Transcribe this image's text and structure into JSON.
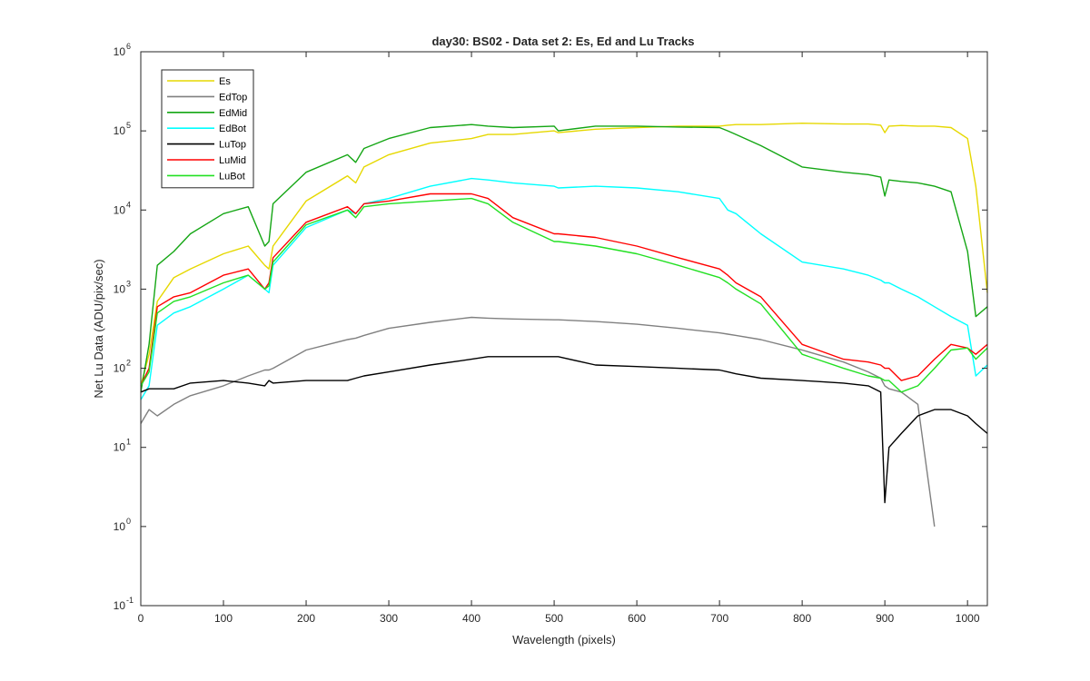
{
  "chart_data": {
    "type": "line",
    "title": "day30: BS02 - Data set 2: Es, Ed and Lu Tracks",
    "xlabel": "Wavelength (pixels)",
    "ylabel": "Net Lu Data (ADU/pix/sec)",
    "xlim": [
      0,
      1024
    ],
    "ylim": [
      0.1,
      1000000
    ],
    "yscale": "log",
    "grid": false,
    "legend_position": "top-left",
    "x_ticks": [
      "0",
      "100",
      "200",
      "300",
      "400",
      "500",
      "600",
      "700",
      "800",
      "900",
      "1000"
    ],
    "y_ticks": [
      {
        "base": "10",
        "exp": "-1"
      },
      {
        "base": "10",
        "exp": "0"
      },
      {
        "base": "10",
        "exp": "1"
      },
      {
        "base": "10",
        "exp": "2"
      },
      {
        "base": "10",
        "exp": "3"
      },
      {
        "base": "10",
        "exp": "4"
      },
      {
        "base": "10",
        "exp": "5"
      },
      {
        "base": "10",
        "exp": "6"
      }
    ],
    "x": [
      0,
      10,
      20,
      40,
      60,
      100,
      130,
      150,
      155,
      160,
      200,
      250,
      260,
      270,
      300,
      350,
      400,
      420,
      450,
      500,
      505,
      550,
      600,
      650,
      700,
      710,
      720,
      750,
      800,
      850,
      880,
      895,
      900,
      905,
      920,
      940,
      960,
      980,
      1000,
      1010,
      1024
    ],
    "series": [
      {
        "name": "Es",
        "color": "#e6d800",
        "values": [
          60,
          150,
          700,
          1400,
          1800,
          2800,
          3500,
          2000,
          1800,
          3500,
          13000,
          27000,
          22000,
          35000,
          50000,
          70000,
          80000,
          90000,
          90000,
          100000,
          95000,
          105000,
          110000,
          115000,
          115000,
          118000,
          120000,
          120000,
          125000,
          122000,
          122000,
          118000,
          95000,
          115000,
          117000,
          115000,
          115000,
          110000,
          80000,
          20000,
          900
        ]
      },
      {
        "name": "EdTop",
        "color": "#808080",
        "values": [
          20,
          30,
          25,
          35,
          45,
          60,
          80,
          95,
          95,
          100,
          170,
          230,
          240,
          260,
          320,
          380,
          440,
          430,
          420,
          410,
          410,
          390,
          360,
          320,
          280,
          270,
          260,
          230,
          170,
          120,
          90,
          75,
          60,
          55,
          50,
          35,
          1,
          null,
          null,
          null,
          null
        ]
      },
      {
        "name": "EdMid",
        "color": "#14a614",
        "values": [
          50,
          200,
          2000,
          3000,
          5000,
          9000,
          11000,
          3500,
          4000,
          12000,
          30000,
          50000,
          40000,
          60000,
          80000,
          110000,
          120000,
          115000,
          110000,
          115000,
          100000,
          115000,
          115000,
          112000,
          110000,
          100000,
          90000,
          65000,
          35000,
          30000,
          28000,
          26000,
          15000,
          24000,
          23000,
          22000,
          20000,
          17000,
          3000,
          450,
          600
        ]
      },
      {
        "name": "EdBot",
        "color": "#00ffff",
        "values": [
          40,
          60,
          350,
          500,
          600,
          1000,
          1500,
          1000,
          900,
          2000,
          6000,
          10000,
          9000,
          12000,
          14000,
          20000,
          25000,
          24000,
          22000,
          20000,
          19000,
          20000,
          19000,
          17000,
          14000,
          10000,
          9000,
          5000,
          2200,
          1800,
          1500,
          1300,
          1200,
          1200,
          1000,
          800,
          600,
          450,
          350,
          80,
          110
        ]
      },
      {
        "name": "LuTop",
        "color": "#000000",
        "values": [
          50,
          55,
          55,
          55,
          65,
          70,
          65,
          60,
          70,
          65,
          70,
          70,
          75,
          80,
          90,
          110,
          130,
          140,
          140,
          140,
          140,
          110,
          105,
          100,
          95,
          90,
          85,
          75,
          70,
          65,
          60,
          50,
          2,
          10,
          15,
          25,
          30,
          30,
          25,
          20,
          15
        ]
      },
      {
        "name": "LuMid",
        "color": "#ff0000",
        "values": [
          60,
          100,
          600,
          800,
          900,
          1500,
          1800,
          1000,
          1200,
          2500,
          7000,
          11000,
          9000,
          12000,
          13000,
          16000,
          16000,
          14000,
          8000,
          5000,
          5000,
          4500,
          3500,
          2500,
          1800,
          1500,
          1200,
          800,
          200,
          130,
          120,
          110,
          100,
          100,
          70,
          80,
          130,
          200,
          180,
          150,
          200
        ]
      },
      {
        "name": "LuBot",
        "color": "#22e022",
        "values": [
          60,
          90,
          500,
          700,
          800,
          1200,
          1500,
          1000,
          1100,
          2200,
          6500,
          10000,
          8000,
          11000,
          12000,
          13000,
          14000,
          12000,
          7000,
          4000,
          4000,
          3500,
          2800,
          2000,
          1400,
          1200,
          1000,
          650,
          150,
          100,
          80,
          75,
          70,
          70,
          50,
          60,
          100,
          170,
          180,
          130,
          180
        ]
      }
    ]
  }
}
